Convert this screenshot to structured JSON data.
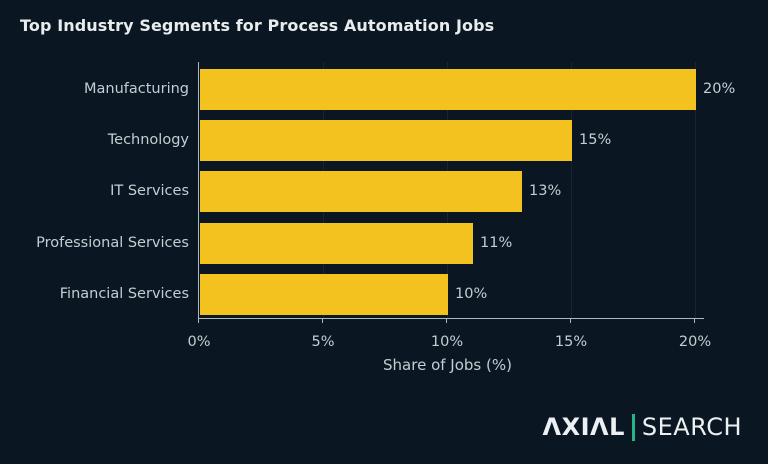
{
  "chart_data": {
    "type": "bar",
    "orientation": "horizontal",
    "title": "Top Industry Segments for Process Automation Jobs",
    "categories": [
      "Manufacturing",
      "Technology",
      "IT Services",
      "Professional Services",
      "Financial Services"
    ],
    "values": [
      20,
      15,
      13,
      11,
      10
    ],
    "value_labels": [
      "20%",
      "15%",
      "13%",
      "11%",
      "10%"
    ],
    "xlabel": "Share of Jobs (%)",
    "ylabel": "",
    "xlim": [
      0,
      20
    ],
    "x_ticks": [
      0,
      5,
      10,
      15,
      20
    ],
    "x_tick_labels": [
      "0%",
      "5%",
      "10%",
      "15%",
      "20%"
    ],
    "grid": "vertical-gridlines-on",
    "legend": "none"
  },
  "colors": {
    "background": "#0a1722",
    "bar": "#f4c21f",
    "title_text": "#e9eced",
    "label_text": "#c5ccd2",
    "gridline": "#18262f",
    "axis": "#aeb8be",
    "logo_separator": "#28b286",
    "logo_text": "#edf0f2"
  },
  "branding": {
    "logo_left": "ΛXIΛL",
    "logo_right": "SEARCH"
  }
}
